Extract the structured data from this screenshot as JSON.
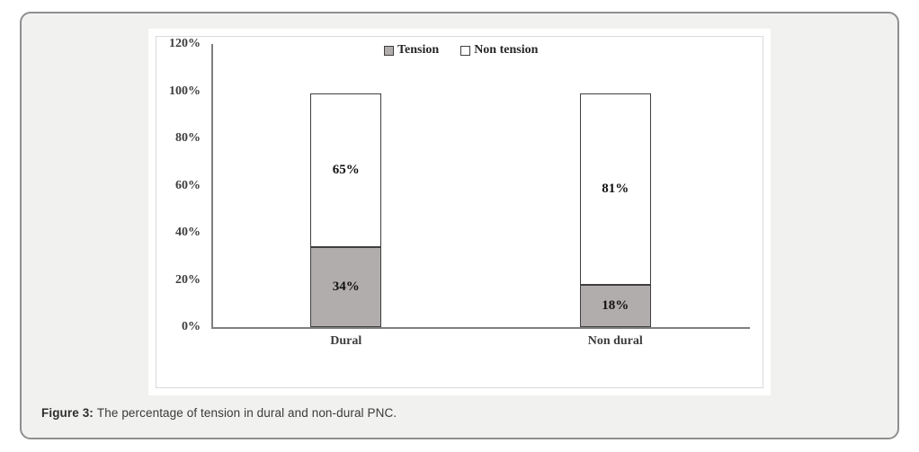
{
  "figure": {
    "caption_label": "Figure 3:",
    "caption_text": "The percentage of tension in dural and non-dural PNC."
  },
  "chart_data": {
    "type": "bar",
    "stacked": true,
    "title": "",
    "xlabel": "",
    "ylabel": "",
    "categories": [
      "Dural",
      "Non dural"
    ],
    "series": [
      {
        "name": "Tension",
        "values": [
          34,
          18
        ],
        "labels": [
          "34%",
          "18%"
        ],
        "fill": "#b1adad"
      },
      {
        "name": "Non tension",
        "values": [
          65,
          81
        ],
        "labels": [
          "65%",
          "81%"
        ],
        "fill": "#ffffff"
      }
    ],
    "totals": [
      99,
      99
    ],
    "ylim": [
      0,
      120
    ],
    "y_tick_step": 20,
    "y_ticks": [
      "0%",
      "20%",
      "40%",
      "60%",
      "80%",
      "100%",
      "120%"
    ],
    "legend_entries": [
      "Tension",
      "Non tension"
    ],
    "legend_position": "top-center",
    "grid": false,
    "colors": {
      "tension_fill": "#b1adad",
      "non_tension_fill": "#ffffff",
      "bar_border": "#3f3f3f",
      "axis": "#7f7f7f",
      "card_background": "#f1f1ef",
      "card_border": "#8f8f8f"
    }
  }
}
